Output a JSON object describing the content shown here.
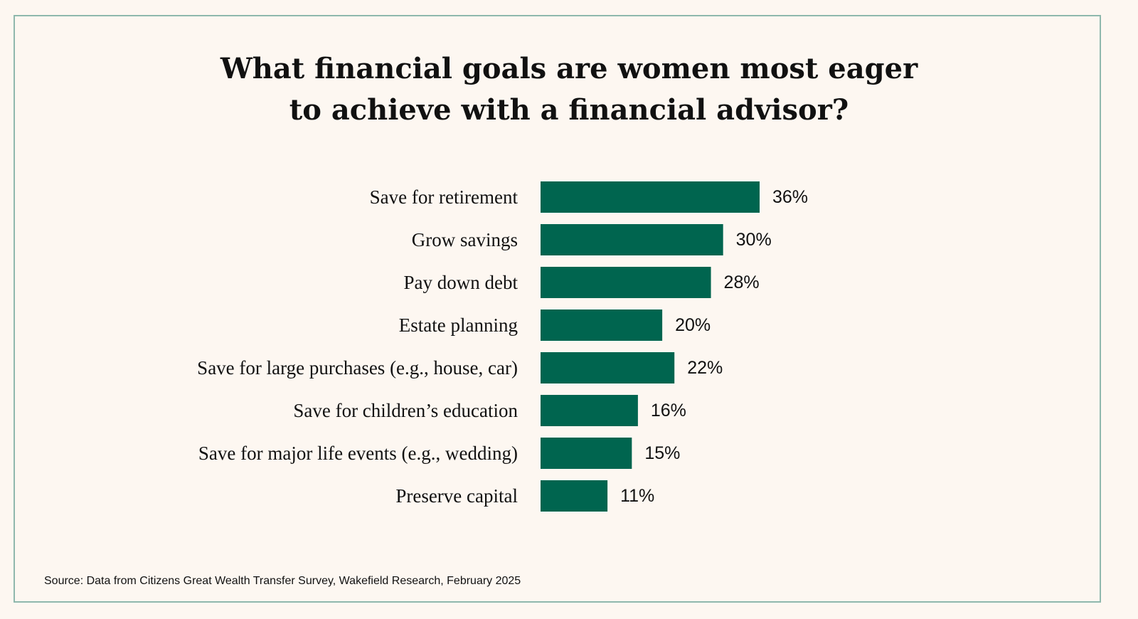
{
  "chart_data": {
    "type": "bar",
    "orientation": "horizontal",
    "title_lines": [
      "What financial goals are women most eager",
      "to achieve with a financial advisor?"
    ],
    "categories": [
      "Save for retirement",
      "Grow savings",
      "Pay down debt",
      "Estate planning",
      "Save for large purchases (e.g., house, car)",
      "Save for children’s education",
      "Save for major life events (e.g., wedding)",
      "Preserve capital"
    ],
    "values": [
      36,
      30,
      28,
      20,
      22,
      16,
      15,
      11
    ],
    "value_labels": [
      "36%",
      "30%",
      "28%",
      "20%",
      "22%",
      "16%",
      "15%",
      "11%"
    ],
    "unit": "%",
    "xlim": [
      0,
      36
    ],
    "grid": false,
    "legend": "none",
    "bar_color": "#00654f",
    "source": "Source: Data from Citizens Great Wealth Transfer Survey, Wakefield Research, February 2025"
  }
}
